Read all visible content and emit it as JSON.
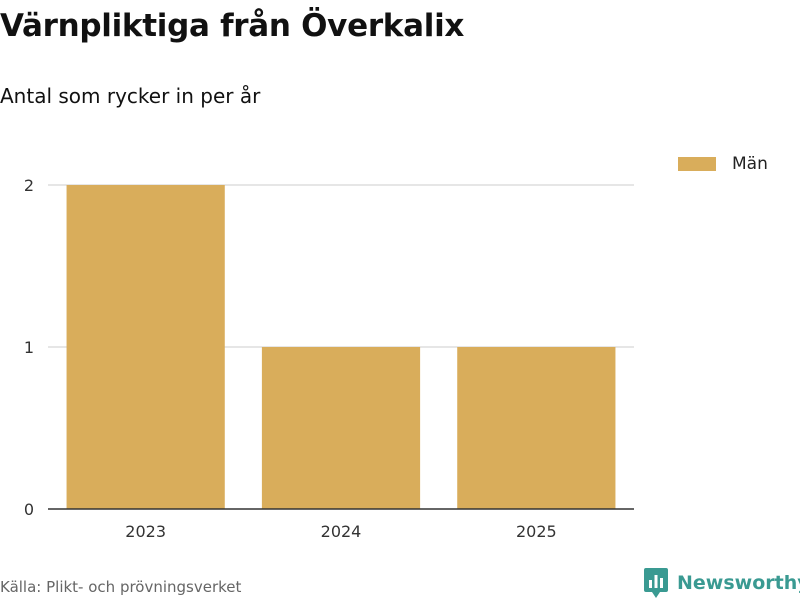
{
  "title": "Värnpliktiga från Överkalix",
  "subtitle": "Antal som rycker in per år",
  "source": "Källa: Plikt- och prövningsverket",
  "brand": {
    "name": "Newsworthy",
    "color": "#3a9a92",
    "logo_icon": "newsworthy-logo-icon"
  },
  "colors": {
    "bar": "#d9ad5b",
    "grid": "#dddddd",
    "axis": "#333333",
    "text": "#333333"
  },
  "chart_data": {
    "type": "bar",
    "title": "Värnpliktiga från Överkalix",
    "subtitle": "Antal som rycker in per år",
    "categories": [
      "2023",
      "2024",
      "2025"
    ],
    "series": [
      {
        "name": "Män",
        "values": [
          2,
          1,
          1
        ]
      }
    ],
    "ylim": [
      0,
      2
    ],
    "yticks": [
      "0",
      "1",
      "2"
    ],
    "grid": true,
    "legend": "top-right"
  }
}
